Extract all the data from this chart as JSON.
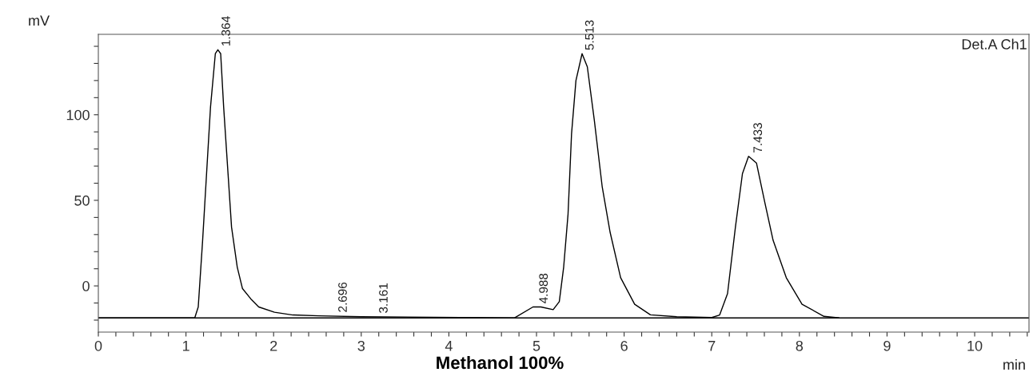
{
  "chart_data": {
    "type": "line",
    "title": "Methanol 100%",
    "xlabel": "min",
    "ylabel": "mV",
    "x": [
      0,
      1.1,
      1.14,
      1.19,
      1.235,
      1.28,
      1.335,
      1.364,
      1.396,
      1.43,
      1.48,
      1.52,
      1.585,
      1.645,
      1.74,
      1.83,
      2.01,
      2.22,
      2.52,
      3.0,
      4.75,
      4.96,
      5.05,
      5.19,
      5.26,
      5.31,
      5.36,
      5.4,
      5.45,
      5.52,
      5.58,
      5.66,
      5.75,
      5.84,
      5.96,
      6.12,
      6.3,
      6.6,
      7.0,
      7.09,
      7.18,
      7.27,
      7.35,
      7.42,
      7.51,
      7.6,
      7.7,
      7.85,
      8.03,
      8.28,
      8.45
    ],
    "series": [
      {
        "color": "#000000",
        "values": [
          -18.7,
          -18.7,
          -12.3,
          26.6,
          65.6,
          104.5,
          135.7,
          138,
          135.7,
          104.5,
          65.6,
          34.4,
          11,
          -1.6,
          -7.6,
          -12.3,
          -15.4,
          -17,
          -17.5,
          -18,
          -18.7,
          -12.3,
          -12.3,
          -13.9,
          -9.2,
          11,
          42,
          89,
          120,
          135.7,
          128,
          96.7,
          57.8,
          31.3,
          4.8,
          -10.7,
          -16.9,
          -18,
          -18.5,
          -17,
          -4.5,
          34.4,
          65.6,
          75.7,
          71.8,
          50,
          26.6,
          4.8,
          -10.7,
          -17.8,
          -18.7
        ]
      }
    ],
    "xlim": [
      0,
      10.62
    ],
    "ylim": [
      -27,
      147
    ],
    "xticks": [
      0,
      {
        "value": 0.2,
        "label": null
      },
      {
        "value": 0.4,
        "label": null
      },
      {
        "value": 0.6,
        "label": null
      },
      {
        "value": 0.8,
        "label": null
      },
      1,
      {
        "value": 1.2,
        "label": null
      },
      {
        "value": 1.4,
        "label": null
      },
      {
        "value": 1.6,
        "label": null
      },
      {
        "value": 1.8,
        "label": null
      },
      2,
      {
        "value": 2.2,
        "label": null
      },
      {
        "value": 2.4,
        "label": null
      },
      {
        "value": 2.6,
        "label": null
      },
      {
        "value": 2.8,
        "label": null
      },
      3,
      {
        "value": 3.2,
        "label": null
      },
      {
        "value": 3.4,
        "label": null
      },
      {
        "value": 3.6,
        "label": null
      },
      {
        "value": 3.8,
        "label": null
      },
      4,
      {
        "value": 4.2,
        "label": null
      },
      {
        "value": 4.4,
        "label": null
      },
      {
        "value": 4.6,
        "label": null
      },
      {
        "value": 4.8,
        "label": null
      },
      5,
      {
        "value": 5.2,
        "label": null
      },
      {
        "value": 5.4,
        "label": null
      },
      {
        "value": 5.6,
        "label": null
      },
      {
        "value": 5.8,
        "label": null
      },
      6,
      {
        "value": 6.2,
        "label": null
      },
      {
        "value": 6.4,
        "label": null
      },
      {
        "value": 6.6,
        "label": null
      },
      {
        "value": 6.8,
        "label": null
      },
      7,
      {
        "value": 7.2,
        "label": null
      },
      {
        "value": 7.4,
        "label": null
      },
      {
        "value": 7.6,
        "label": null
      },
      {
        "value": 7.8,
        "label": null
      },
      8,
      {
        "value": 8.2,
        "label": null
      },
      {
        "value": 8.4,
        "label": null
      },
      {
        "value": 8.6,
        "label": null
      },
      {
        "value": 8.8,
        "label": null
      },
      9,
      {
        "value": 9.2,
        "label": null
      },
      {
        "value": 9.4,
        "label": null
      },
      {
        "value": 9.6,
        "label": null
      },
      {
        "value": 9.8,
        "label": null
      },
      10,
      {
        "value": 10.2,
        "label": null
      },
      {
        "value": 10.4,
        "label": null
      },
      {
        "value": 10.6,
        "label": null
      }
    ],
    "yticks": [
      {
        "value": -20,
        "label": null
      },
      {
        "value": -10,
        "label": null
      },
      0,
      {
        "value": 10,
        "label": null
      },
      {
        "value": 20,
        "label": null
      },
      {
        "value": 30,
        "label": null
      },
      {
        "value": 40,
        "label": null
      },
      50,
      {
        "value": 60,
        "label": null
      },
      {
        "value": 70,
        "label": null
      },
      {
        "value": 80,
        "label": null
      },
      {
        "value": 90,
        "label": null
      },
      100,
      {
        "value": 110,
        "label": null
      },
      {
        "value": 120,
        "label": null
      },
      {
        "value": 130,
        "label": null
      },
      {
        "value": 140,
        "label": null
      }
    ],
    "ref_lines": [
      {
        "axis": "y",
        "value": -18.7,
        "color": "#000000"
      }
    ],
    "annotations": [
      {
        "text": "1.364",
        "x": 1.364,
        "y": 138
      },
      {
        "text": "2.696",
        "x": 2.696,
        "y": -17.5
      },
      {
        "text": "3.161",
        "x": 3.161,
        "y": -18
      },
      {
        "text": "4.988",
        "x": 4.988,
        "y": -12.3
      },
      {
        "text": "5.513",
        "x": 5.513,
        "y": 135.7
      },
      {
        "text": "7.433",
        "x": 7.433,
        "y": 75.7
      },
      "Det.A Ch1"
    ],
    "grid": false,
    "legend": false
  }
}
